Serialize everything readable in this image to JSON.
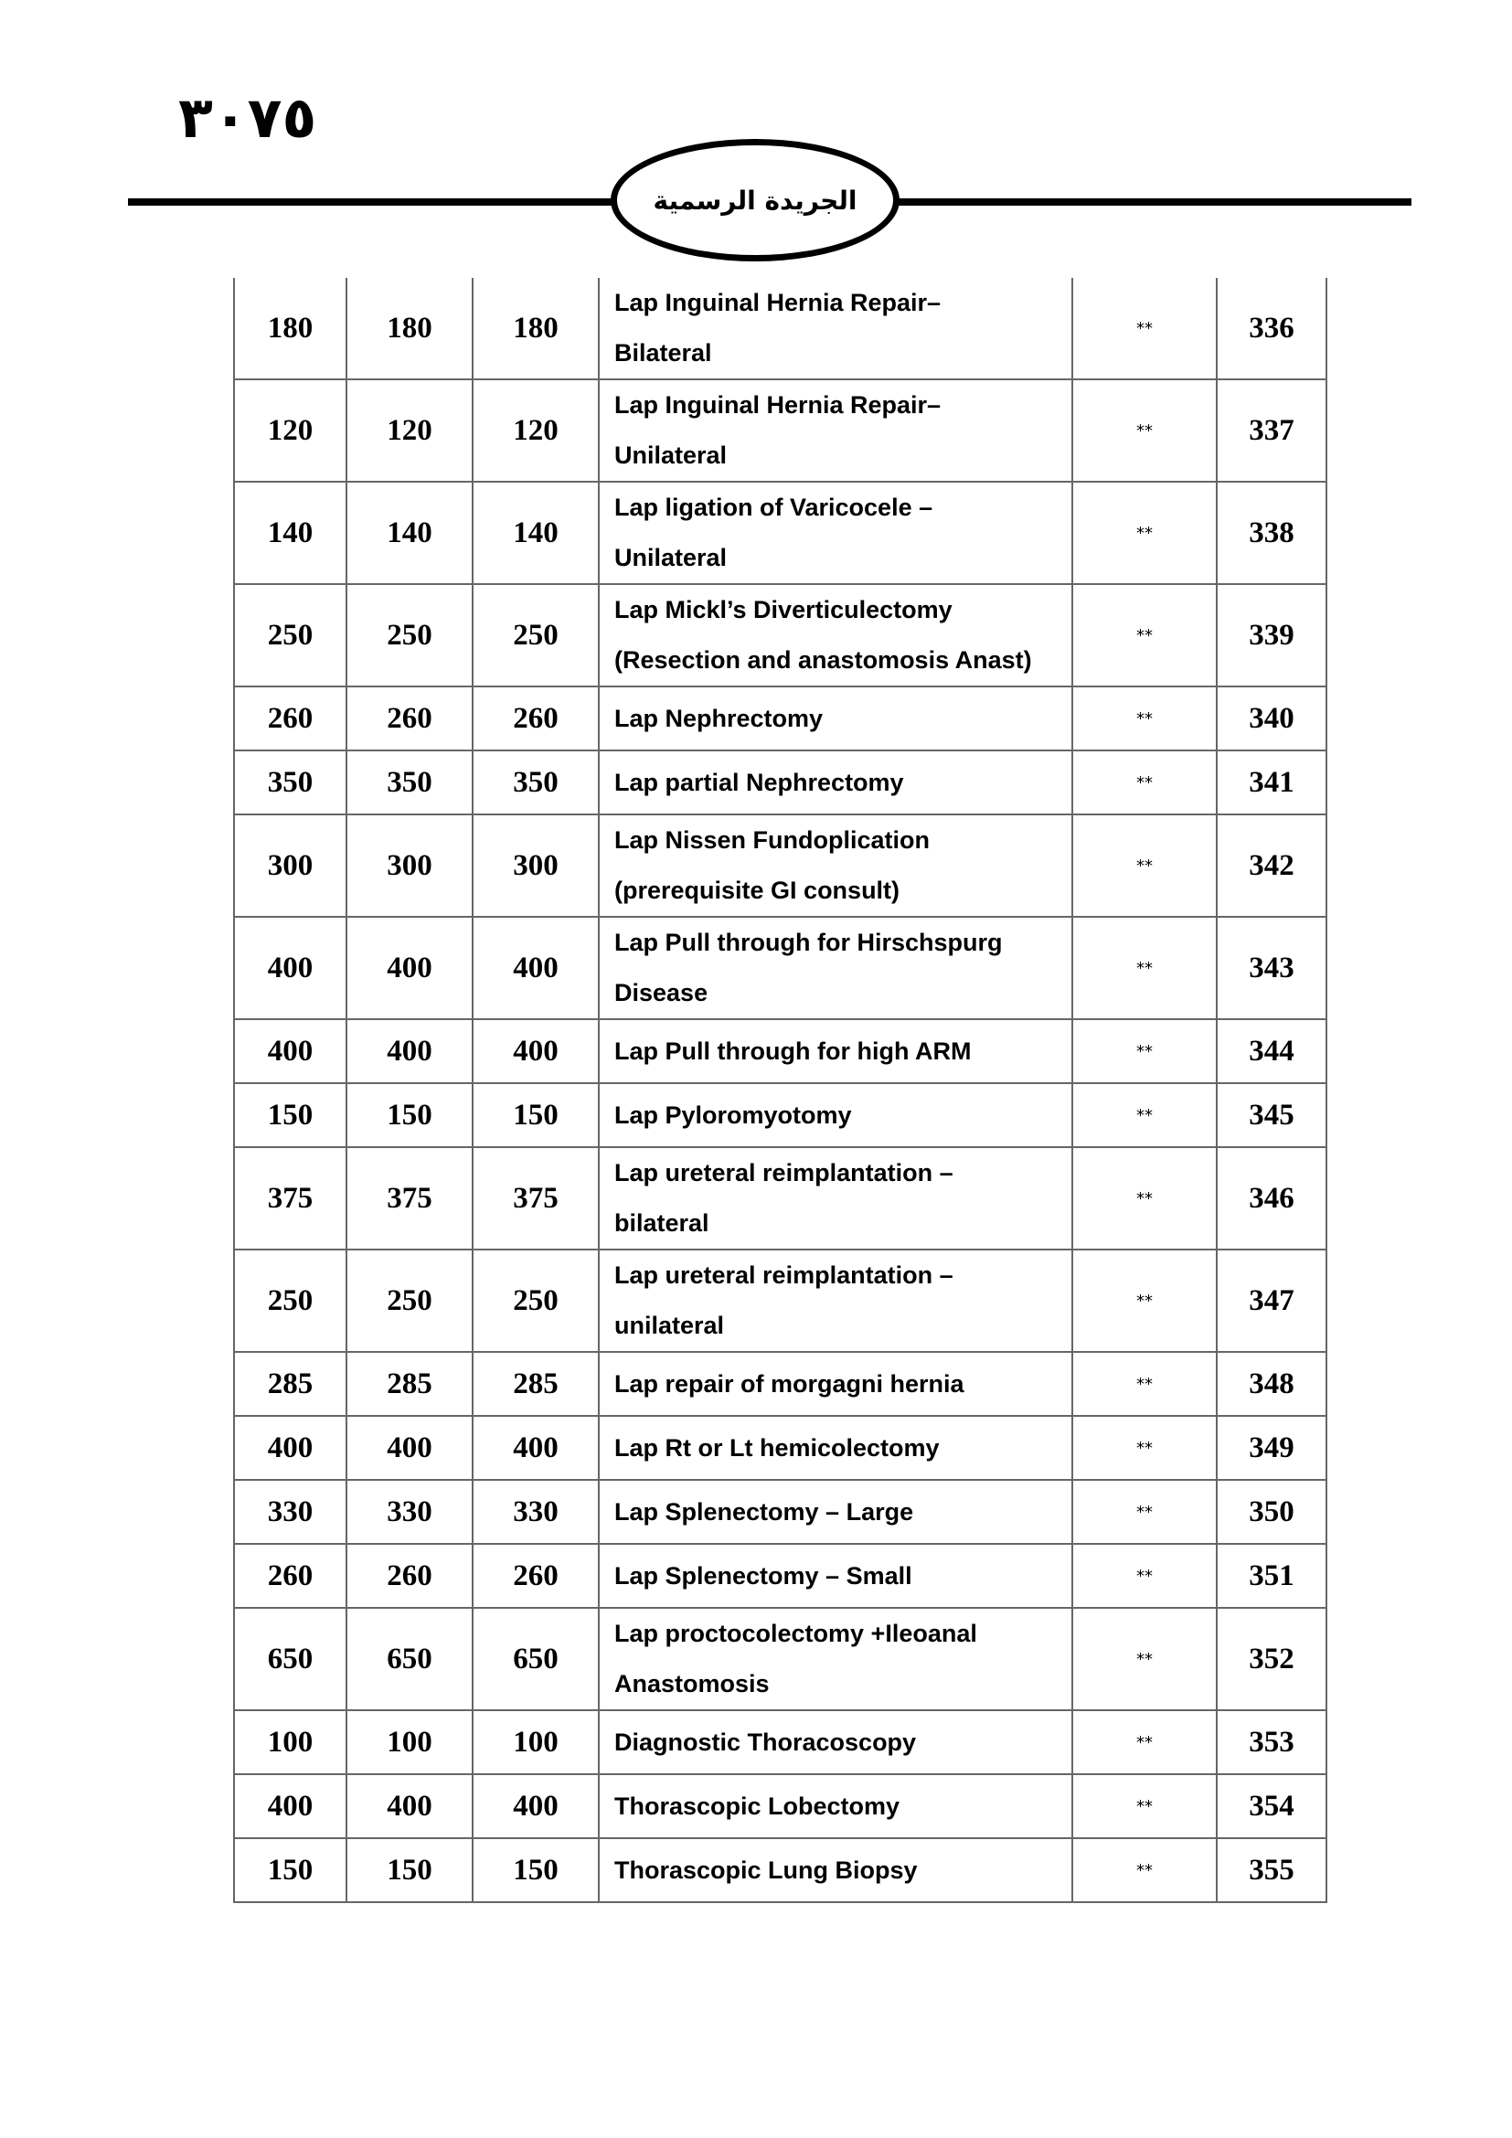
{
  "header": {
    "page_number": "٣٠٧٥",
    "title": "الجريدة الرسمية"
  },
  "table": {
    "rows": [
      {
        "prices": [
          180,
          180,
          180
        ],
        "description": [
          "Lap Inguinal Hernia Repair–",
          "Bilateral"
        ],
        "mark": "**",
        "number": 336
      },
      {
        "prices": [
          120,
          120,
          120
        ],
        "description": [
          "Lap Inguinal Hernia Repair–",
          "Unilateral"
        ],
        "mark": "**",
        "number": 337
      },
      {
        "prices": [
          140,
          140,
          140
        ],
        "description": [
          "Lap ligation of Varicocele –",
          "Unilateral"
        ],
        "mark": "**",
        "number": 338
      },
      {
        "prices": [
          250,
          250,
          250
        ],
        "description": [
          "Lap Mickl’s Diverticulectomy",
          "(Resection and  anastomosis Anast)"
        ],
        "mark": "**",
        "number": 339
      },
      {
        "prices": [
          260,
          260,
          260
        ],
        "description": [
          "Lap Nephrectomy"
        ],
        "mark": "**",
        "number": 340
      },
      {
        "prices": [
          350,
          350,
          350
        ],
        "description": [
          "Lap  partial Nephrectomy"
        ],
        "mark": "**",
        "number": 341
      },
      {
        "prices": [
          300,
          300,
          300
        ],
        "description": [
          "Lap Nissen Fundoplication",
          "(prerequisite GI consult)"
        ],
        "mark": "**",
        "number": 342
      },
      {
        "prices": [
          400,
          400,
          400
        ],
        "description": [
          "Lap Pull through for Hirschspurg",
          "Disease"
        ],
        "mark": "**",
        "number": 343
      },
      {
        "prices": [
          400,
          400,
          400
        ],
        "description": [
          "Lap Pull through for high ARM"
        ],
        "mark": "**",
        "number": 344
      },
      {
        "prices": [
          150,
          150,
          150
        ],
        "description": [
          "Lap Pyloromyotomy"
        ],
        "mark": "**",
        "number": 345
      },
      {
        "prices": [
          375,
          375,
          375
        ],
        "description": [
          "Lap ureteral reimplantation –",
          "bilateral"
        ],
        "mark": "**",
        "number": 346
      },
      {
        "prices": [
          250,
          250,
          250
        ],
        "description": [
          "Lap ureteral reimplantation –",
          "unilateral"
        ],
        "mark": "**",
        "number": 347
      },
      {
        "prices": [
          285,
          285,
          285
        ],
        "description": [
          "Lap repair of morgagni hernia"
        ],
        "mark": "**",
        "number": 348
      },
      {
        "prices": [
          400,
          400,
          400
        ],
        "description": [
          "Lap Rt or Lt hemicolectomy"
        ],
        "mark": "**",
        "number": 349
      },
      {
        "prices": [
          330,
          330,
          330
        ],
        "description": [
          "Lap Splenectomy – Large"
        ],
        "mark": "**",
        "number": 350
      },
      {
        "prices": [
          260,
          260,
          260
        ],
        "description": [
          "Lap Splenectomy – Small"
        ],
        "mark": "**",
        "number": 351
      },
      {
        "prices": [
          650,
          650,
          650
        ],
        "description": [
          "Lap proctocolectomy +Ileoanal",
          "Anastomosis"
        ],
        "mark": "**",
        "number": 352
      },
      {
        "prices": [
          100,
          100,
          100
        ],
        "description": [
          "Diagnostic Thoracoscopy"
        ],
        "mark": "**",
        "number": 353
      },
      {
        "prices": [
          400,
          400,
          400
        ],
        "description": [
          "Thorascopic Lobectomy"
        ],
        "mark": "**",
        "number": 354
      },
      {
        "prices": [
          150,
          150,
          150
        ],
        "description": [
          "Thorascopic Lung Biopsy"
        ],
        "mark": "**",
        "number": 355
      }
    ]
  }
}
